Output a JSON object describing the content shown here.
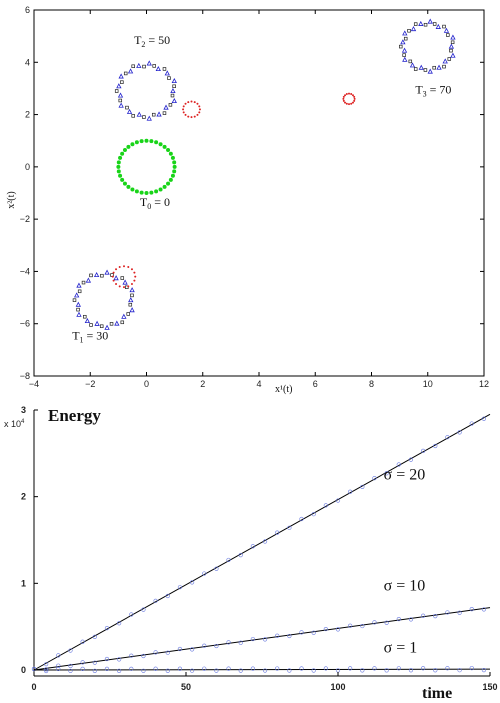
{
  "top": {
    "xlabel": "x¹(t)",
    "ylabel": "x²(t)",
    "xlim": [
      -4,
      12
    ],
    "ylim": [
      -8,
      6
    ],
    "xticks": [
      "−4",
      "−2",
      "0",
      "2",
      "4",
      "6",
      "8",
      "10",
      "12"
    ],
    "yticks": [
      "6",
      "4",
      "2",
      "0",
      "−2",
      "−4",
      "−6",
      "−8"
    ],
    "annotations": [
      {
        "label": "T",
        "sub": "0",
        "suffix": " = 0",
        "x": 0.3,
        "y": -1.5
      },
      {
        "label": "T",
        "sub": "1",
        "suffix": " = 30",
        "x": -2.0,
        "y": -6.6
      },
      {
        "label": "T",
        "sub": "2",
        "suffix": " = 50",
        "x": 0.2,
        "y": 4.7
      },
      {
        "label": "T",
        "sub": "3",
        "suffix": " = 70",
        "x": 10.2,
        "y": 2.8
      }
    ]
  },
  "bottom": {
    "title": "Energy",
    "xlabel": "time",
    "multiplier_base": "x 10",
    "multiplier_exp": "4",
    "xlim": [
      0,
      150
    ],
    "ylim": [
      0,
      3
    ],
    "xticks": [
      "0",
      "50",
      "100",
      "150"
    ],
    "yticks": [
      "3",
      "2",
      "1",
      "0"
    ],
    "series_labels": [
      {
        "text": "σ = 20",
        "x": 115,
        "y": 2.2
      },
      {
        "text": "σ = 10",
        "x": 115,
        "y": 0.92
      },
      {
        "text": "σ = 1",
        "x": 115,
        "y": 0.2
      }
    ]
  },
  "chart_data": [
    {
      "type": "scatter",
      "title": "",
      "xlabel": "x¹(t)",
      "ylabel": "x²(t)",
      "xlim": [
        -4,
        12
      ],
      "ylim": [
        -8,
        6
      ],
      "grid": false,
      "series": [
        {
          "name": "T₀ = 0",
          "color": "#18d418",
          "marker": "dot",
          "center": [
            0,
            0
          ],
          "radius": 1.0
        },
        {
          "name": "T₁ = 30",
          "color": "#2222cc",
          "marker": "triangle",
          "center": [
            -1.5,
            -5.1
          ],
          "radius": 1.0
        },
        {
          "name": "T₂ = 50",
          "color": "#2222cc",
          "marker": "triangle",
          "center": [
            0.0,
            2.9
          ],
          "radius": 1.0
        },
        {
          "name": "T₃ = 70",
          "color": "#2222cc",
          "marker": "triangle",
          "center": [
            10.0,
            4.6
          ],
          "radius": 0.9
        },
        {
          "color": "#dd2222",
          "marker": "dot",
          "center": [
            -0.8,
            -4.2
          ],
          "radius": 0.4
        },
        {
          "color": "#dd2222",
          "marker": "dot",
          "center": [
            1.6,
            2.2
          ],
          "radius": 0.3
        },
        {
          "color": "#dd2222",
          "marker": "dot",
          "center": [
            7.2,
            2.6
          ],
          "radius": 0.2
        }
      ]
    },
    {
      "type": "line",
      "title": "Energy",
      "xlabel": "time",
      "ylabel": "",
      "y_multiplier": "x 10^4",
      "xlim": [
        0,
        150
      ],
      "ylim": [
        0,
        3
      ],
      "grid": false,
      "series": [
        {
          "name": "σ = 20",
          "x": [
            0,
            150
          ],
          "y": [
            0,
            2.95
          ]
        },
        {
          "name": "σ = 10",
          "x": [
            0,
            150
          ],
          "y": [
            0,
            0.72
          ]
        },
        {
          "name": "σ = 1",
          "x": [
            0,
            150
          ],
          "y": [
            0,
            0.01
          ]
        }
      ]
    }
  ]
}
